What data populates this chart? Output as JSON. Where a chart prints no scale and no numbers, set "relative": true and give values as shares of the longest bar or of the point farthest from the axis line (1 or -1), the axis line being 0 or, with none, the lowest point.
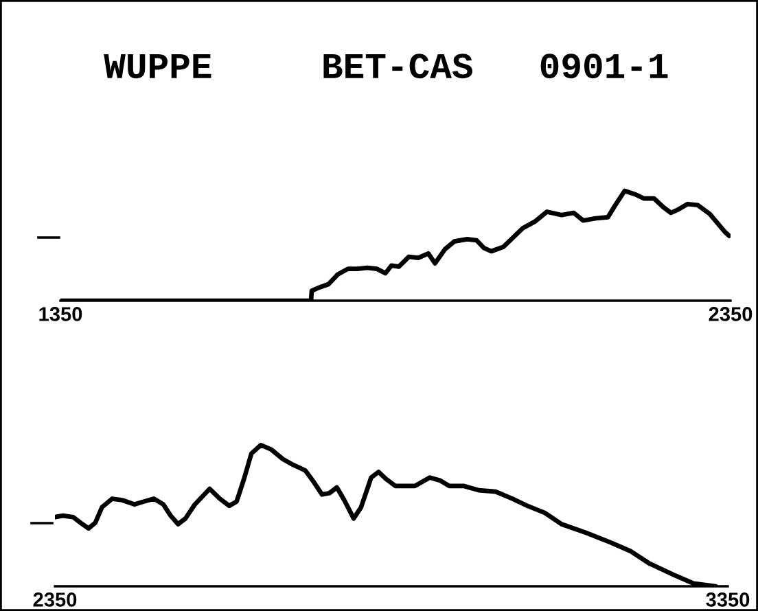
{
  "chart_data": [
    {
      "type": "line",
      "title": "WUPPE     BET-CAS   0901-1",
      "relative": true,
      "xlim": [
        1350,
        2350
      ],
      "xticks": [
        1350,
        2350
      ],
      "series": [
        {
          "color": "#000000",
          "x": [
            1350,
            1724,
            1725,
            1736,
            1750,
            1764,
            1779,
            1793,
            1808,
            1822,
            1835,
            1844,
            1855,
            1870,
            1884,
            1899,
            1909,
            1924,
            1938,
            1957,
            1971,
            1982,
            1993,
            2011,
            2040,
            2058,
            2076,
            2098,
            2116,
            2130,
            2149,
            2167,
            2178,
            2192,
            2207,
            2221,
            2236,
            2250,
            2261,
            2272,
            2286,
            2301,
            2319,
            2330,
            2341,
            2348
          ],
          "values": [
            0,
            0,
            0.09,
            0.12,
            0.15,
            0.24,
            0.29,
            0.29,
            0.3,
            0.29,
            0.25,
            0.32,
            0.31,
            0.4,
            0.39,
            0.43,
            0.34,
            0.47,
            0.54,
            0.56,
            0.55,
            0.48,
            0.45,
            0.49,
            0.66,
            0.72,
            0.81,
            0.78,
            0.8,
            0.73,
            0.75,
            0.76,
            0.87,
            1.0,
            0.97,
            0.93,
            0.93,
            0.85,
            0.8,
            0.83,
            0.88,
            0.87,
            0.79,
            0.71,
            0.63,
            0.59
          ]
        }
      ]
    },
    {
      "type": "line",
      "relative": true,
      "xlim": [
        2350,
        3350
      ],
      "xticks": [
        2350,
        3350
      ],
      "series": [
        {
          "color": "#000000",
          "x": [
            2350,
            2362,
            2377,
            2388,
            2400,
            2410,
            2420,
            2435,
            2450,
            2468,
            2482,
            2497,
            2511,
            2522,
            2533,
            2544,
            2558,
            2580,
            2595,
            2609,
            2620,
            2631,
            2642,
            2656,
            2671,
            2689,
            2704,
            2722,
            2733,
            2747,
            2758,
            2769,
            2780,
            2794,
            2805,
            2820,
            2831,
            2842,
            2856,
            2885,
            2907,
            2922,
            2936,
            2958,
            2980,
            3005,
            3030,
            3052,
            3078,
            3103,
            3139,
            3176,
            3205,
            3234,
            3270,
            3299,
            3332
          ],
          "values": [
            0.49,
            0.5,
            0.49,
            0.45,
            0.41,
            0.45,
            0.56,
            0.62,
            0.61,
            0.58,
            0.6,
            0.62,
            0.58,
            0.5,
            0.44,
            0.48,
            0.58,
            0.69,
            0.62,
            0.57,
            0.6,
            0.76,
            0.94,
            1.0,
            0.97,
            0.9,
            0.86,
            0.82,
            0.75,
            0.65,
            0.66,
            0.7,
            0.61,
            0.48,
            0.56,
            0.77,
            0.81,
            0.76,
            0.71,
            0.71,
            0.77,
            0.75,
            0.71,
            0.71,
            0.68,
            0.67,
            0.62,
            0.57,
            0.52,
            0.44,
            0.38,
            0.31,
            0.25,
            0.16,
            0.08,
            0.02,
            0
          ]
        }
      ]
    }
  ]
}
